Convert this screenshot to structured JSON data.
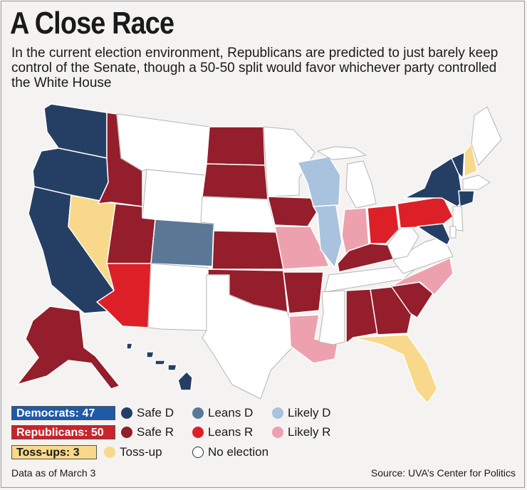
{
  "title": "A Close Race",
  "subtitle": "In the current election environment, Republicans are predicted to just barely keep control of the Senate, though a 50-50 split would favor whichever party controlled the White House",
  "colors": {
    "safe_d": "#253f64",
    "leans_d": "#5a7896",
    "likely_d": "#a9c2dd",
    "safe_r": "#941e2b",
    "leans_r": "#dd2027",
    "likely_r": "#eda1ae",
    "toss_up": "#f8d88a",
    "no_election": "#ffffff"
  },
  "totals": {
    "democrats": "Democrats: 47",
    "republicans": "Republicans: 50",
    "toss_ups": "Toss-ups: 3"
  },
  "legend": {
    "safe_d": "Safe D",
    "leans_d": "Leans D",
    "likely_d": "Likely D",
    "safe_r": "Safe R",
    "leans_r": "Leans R",
    "likely_r": "Likely R",
    "toss_up": "Toss-up",
    "no_election": "No election"
  },
  "states": {
    "WA": "safe_d",
    "OR": "safe_d",
    "CA": "safe_d",
    "NV": "toss_up",
    "ID": "safe_r",
    "MT": "no_election",
    "WY": "no_election",
    "UT": "safe_r",
    "AZ": "leans_r",
    "CO": "leans_d",
    "NM": "no_election",
    "ND": "safe_r",
    "SD": "safe_r",
    "NE": "no_election",
    "KS": "safe_r",
    "OK": "safe_r",
    "TX": "no_election",
    "MN": "no_election",
    "IA": "safe_r",
    "MO": "likely_r",
    "AR": "safe_r",
    "LA": "likely_r",
    "WI": "likely_d",
    "IL": "likely_d",
    "MI": "no_election",
    "IN": "likely_r",
    "OH": "leans_r",
    "KY": "safe_r",
    "TN": "no_election",
    "MS": "no_election",
    "AL": "safe_r",
    "GA": "safe_r",
    "FL": "toss_up",
    "SC": "safe_r",
    "NC": "likely_r",
    "VA": "no_election",
    "WV": "no_election",
    "PA": "leans_r",
    "NY": "safe_d",
    "VT": "safe_d",
    "NH": "toss_up",
    "ME": "no_election",
    "MA": "no_election",
    "CT": "safe_d",
    "MD": "safe_d",
    "DE": "no_election",
    "NJ": "no_election",
    "AK": "safe_r",
    "HI": "safe_d"
  },
  "footer": {
    "data_note": "Data as of March 3",
    "source": "Source: UVA’s Center for Politics"
  }
}
